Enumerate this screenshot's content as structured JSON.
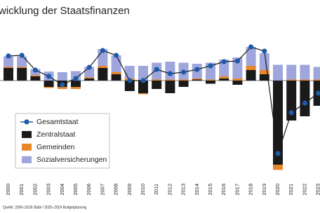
{
  "chart_data": {
    "type": "bar",
    "title": "wicklung der Staatsfinanzen",
    "source": "Quelle: 2000–2019 Stabi / 2020–2024 Budgetplanung",
    "categories": [
      "2000",
      "2001",
      "2002",
      "2003",
      "2004",
      "2005",
      "2006",
      "2007",
      "2008",
      "2009",
      "2010",
      "2011",
      "2012",
      "2013",
      "2014",
      "2015",
      "2016",
      "2017",
      "2018",
      "2019",
      "2020",
      "2021",
      "2022",
      "2023"
    ],
    "ylim": [
      -4.7,
      2.5
    ],
    "series": [
      {
        "name": "Gesamtstaat",
        "type": "line",
        "color": "#1d5aa8",
        "values": [
          1.17,
          1.2,
          0.5,
          0.2,
          -0.2,
          0.1,
          0.63,
          1.43,
          1.2,
          0,
          0,
          0.53,
          0.33,
          0.4,
          0.53,
          0.7,
          0.9,
          0.93,
          1.6,
          1.4,
          -3.47,
          -1.53,
          -1.07,
          -0.6
        ]
      },
      {
        "name": "Zentralstaat",
        "type": "bar",
        "color": "#1a1a1a",
        "values": [
          0.6,
          0.6,
          0.2,
          -0.3,
          -0.3,
          -0.3,
          0.1,
          0.6,
          0.3,
          -0.5,
          -0.6,
          -0.4,
          -0.6,
          -0.3,
          0.05,
          -0.15,
          0.1,
          -0.2,
          0.5,
          0.3,
          -4.0,
          -1.9,
          -1.7,
          -1.2
        ]
      },
      {
        "name": "Gemeinden",
        "type": "bar",
        "color": "#e8862a",
        "values": [
          0.05,
          0.05,
          0.05,
          -0.05,
          -0.1,
          -0.1,
          0.05,
          0.1,
          0.1,
          0.1,
          -0.05,
          0.05,
          0.05,
          0.05,
          0.05,
          0.05,
          0.1,
          0.1,
          0.2,
          0.2,
          -0.25,
          0.05,
          0.05,
          0.05
        ]
      },
      {
        "name": "Sozialversicherungen",
        "type": "bar",
        "color": "#9ea6dc",
        "values": [
          0.5,
          0.5,
          0.3,
          0.43,
          0.4,
          0.45,
          0.5,
          0.8,
          0.8,
          0.6,
          0.7,
          0.8,
          0.85,
          0.8,
          0.7,
          0.8,
          0.8,
          1.0,
          0.9,
          0.8,
          0.75,
          0.7,
          0.7,
          0.6
        ]
      }
    ]
  }
}
